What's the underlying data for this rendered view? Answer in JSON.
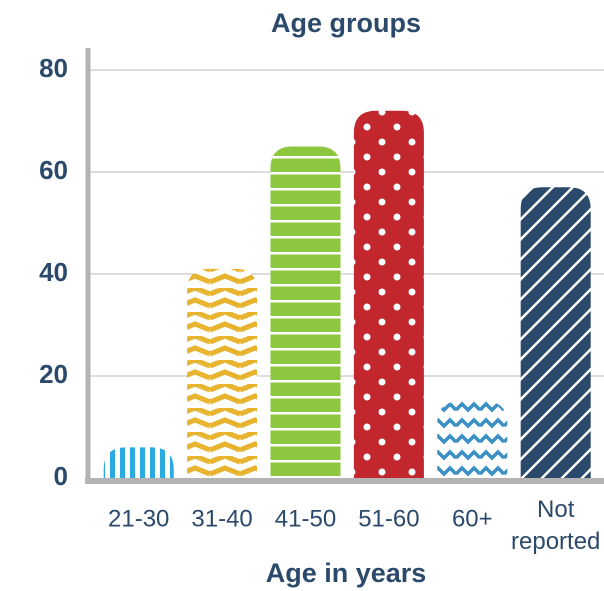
{
  "chart_data": {
    "type": "bar",
    "title": "Age groups",
    "x_label": "Age in years",
    "categories": [
      "21-30",
      "31-40",
      "41-50",
      "51-60",
      "60+",
      "Not reported"
    ],
    "values": [
      6,
      41,
      65,
      72,
      15,
      57
    ],
    "colors": [
      "#29abe2",
      "#e8b430",
      "#8dc63f",
      "#c1272d",
      "#3a8fc7",
      "#2b4a6b"
    ],
    "ylim": [
      0,
      80
    ],
    "yticks": [
      0,
      20,
      40,
      60,
      80
    ],
    "grid": true
  }
}
